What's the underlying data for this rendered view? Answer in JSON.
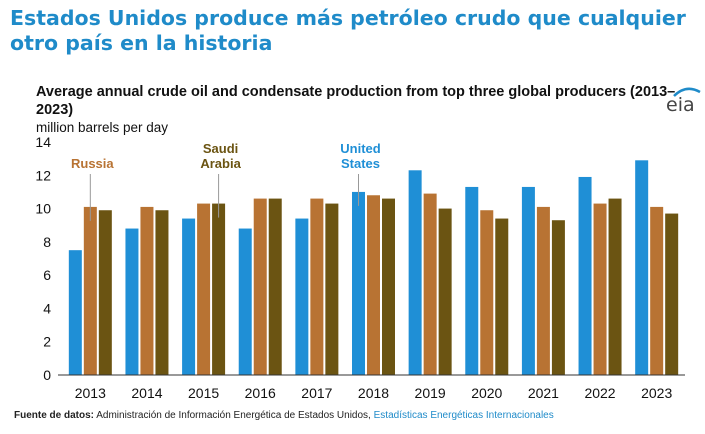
{
  "headline": "Estados Unidos produce más petróleo crudo que cualquier otro país en la historia",
  "logo": {
    "text": "eia",
    "icon": "eia-logo-icon"
  },
  "footer": {
    "label": "Fuente de datos:",
    "text": " Administración de Información Energética de Estados Unidos, ",
    "link": "Estadísticas Energéticas Internacionales"
  },
  "chart_data": {
    "type": "bar",
    "title": "Average annual crude oil and condensate production from top three global producers (2013–2023)",
    "ylabel": "million barrels per day",
    "xlabel": "",
    "ylim": [
      0,
      14
    ],
    "yticks": [
      0,
      2,
      4,
      6,
      8,
      10,
      12,
      14
    ],
    "grid": false,
    "categories": [
      "2013",
      "2014",
      "2015",
      "2016",
      "2017",
      "2018",
      "2019",
      "2020",
      "2021",
      "2022",
      "2023"
    ],
    "series": [
      {
        "name": "United States",
        "color": "#1f8fd6",
        "values": [
          7.5,
          8.8,
          9.4,
          8.8,
          9.4,
          11.0,
          12.3,
          11.3,
          11.3,
          11.9,
          12.9
        ]
      },
      {
        "name": "Russia",
        "color": "#b87333",
        "values": [
          10.1,
          10.1,
          10.3,
          10.6,
          10.6,
          10.8,
          10.9,
          9.9,
          10.1,
          10.3,
          10.1
        ]
      },
      {
        "name": "Saudi Arabia",
        "color": "#6b5412",
        "values": [
          9.9,
          9.9,
          10.3,
          10.6,
          10.3,
          10.6,
          10.0,
          9.4,
          9.3,
          10.6,
          9.7
        ]
      }
    ],
    "annotations": [
      {
        "series": 1,
        "category": 0,
        "lines": [
          "Russia"
        ]
      },
      {
        "series": 2,
        "category": 2,
        "lines": [
          "Saudi",
          "Arabia"
        ]
      },
      {
        "series": 0,
        "category": 5,
        "lines": [
          "United",
          "States"
        ]
      }
    ]
  }
}
